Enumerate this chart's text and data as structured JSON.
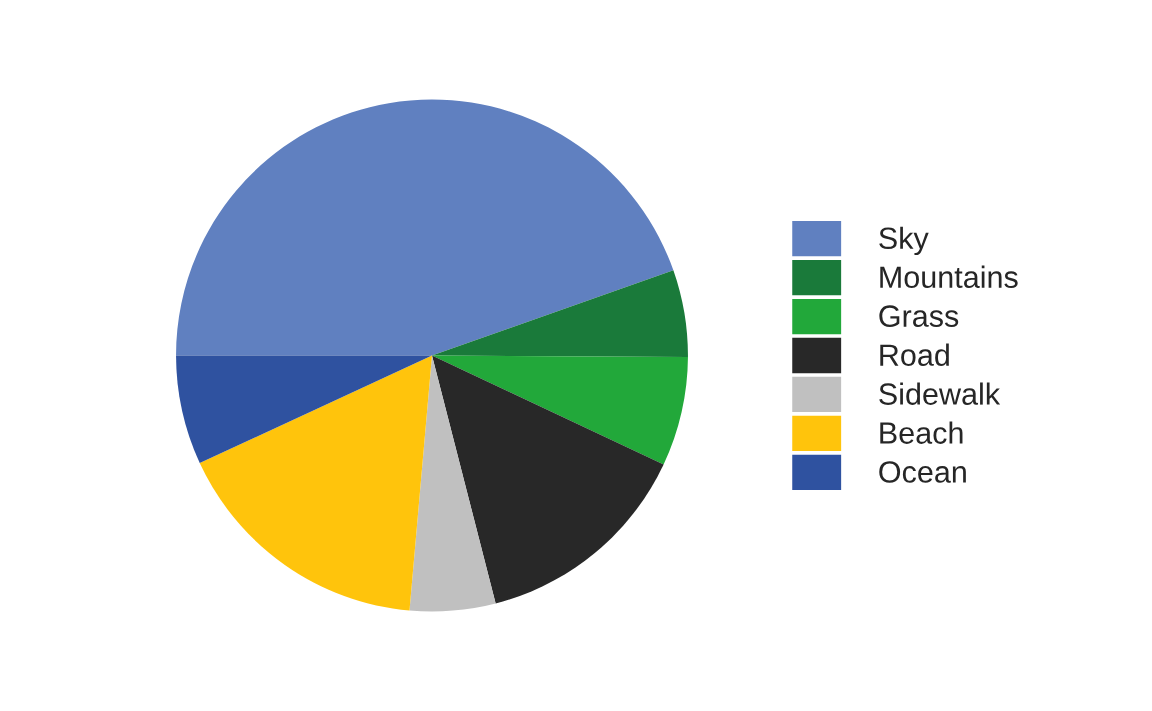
{
  "chart_data": {
    "type": "pie",
    "categories": [
      "Sky",
      "Mountains",
      "Grass",
      "Road",
      "Sidewalk",
      "Beach",
      "Ocean"
    ],
    "values": [
      44.6,
      5.5,
      6.9,
      14.0,
      5.4,
      16.7,
      6.9
    ],
    "colors": [
      "#6080c0",
      "#1a7a3a",
      "#22a83a",
      "#282828",
      "#c0c0c0",
      "#ffc40c",
      "#2f52a0"
    ],
    "legend": "right"
  }
}
